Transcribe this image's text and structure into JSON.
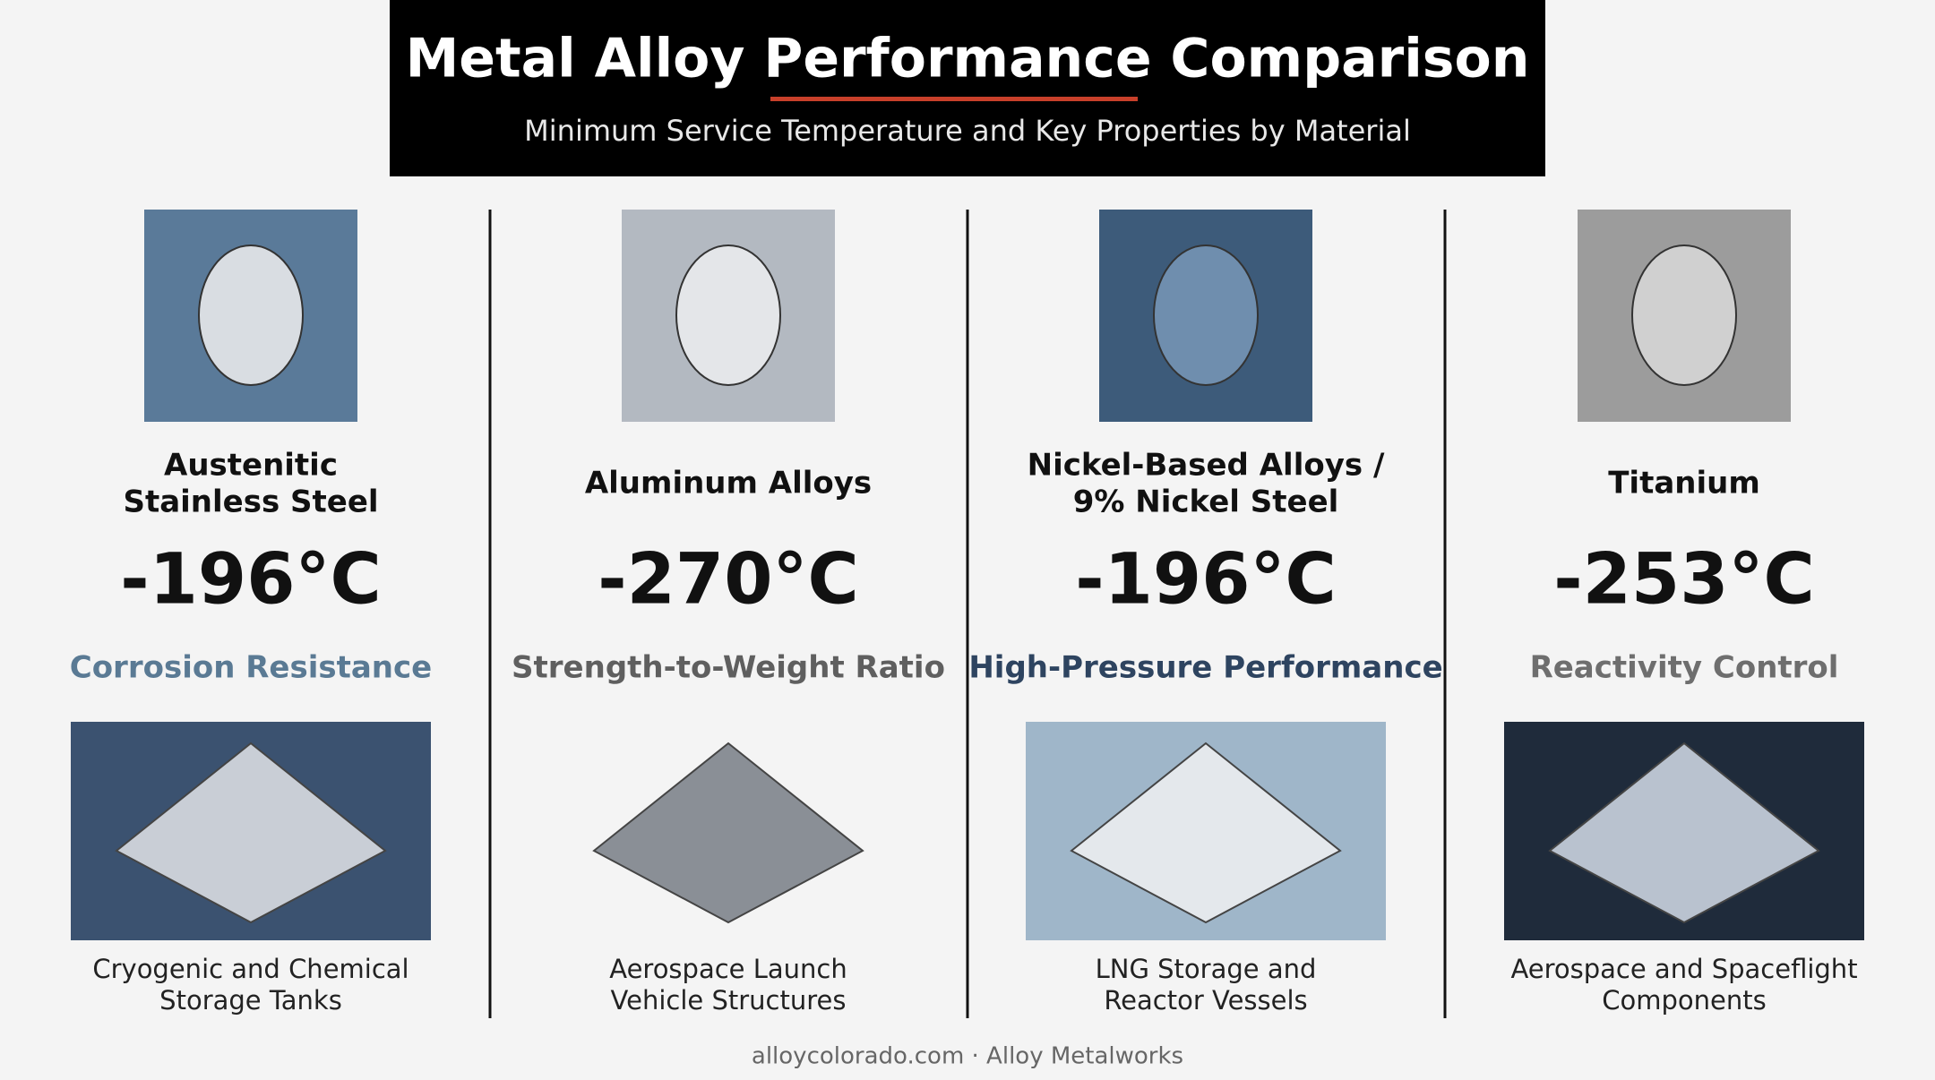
{
  "header": {
    "title": "Metal Alloy Performance Comparison",
    "subtitle": "Minimum Service Temperature and Key Properties by Material"
  },
  "columns": [
    {
      "name": [
        "Austenitic",
        "Stainless Steel"
      ],
      "temperature": "-196°C",
      "property": "Corrosion Resistance",
      "application": [
        "Cryogenic and Chemical",
        "Storage Tanks"
      ]
    },
    {
      "name": [
        "Aluminum Alloys"
      ],
      "temperature": "-270°C",
      "property": "Strength-to-Weight Ratio",
      "application": [
        "Aerospace Launch",
        "Vehicle Structures"
      ]
    },
    {
      "name": [
        "Nickel-Based Alloys /",
        "9% Nickel Steel"
      ],
      "temperature": "-196°C",
      "property": "High-Pressure Performance",
      "application": [
        "LNG Storage and",
        "Reactor Vessels"
      ]
    },
    {
      "name": [
        "Titanium"
      ],
      "temperature": "-253°C",
      "property": "Reactivity Control",
      "application": [
        "Aerospace and Spaceflight",
        "Components"
      ]
    }
  ],
  "footer": "alloycolorado.com · Alloy Metalworks"
}
